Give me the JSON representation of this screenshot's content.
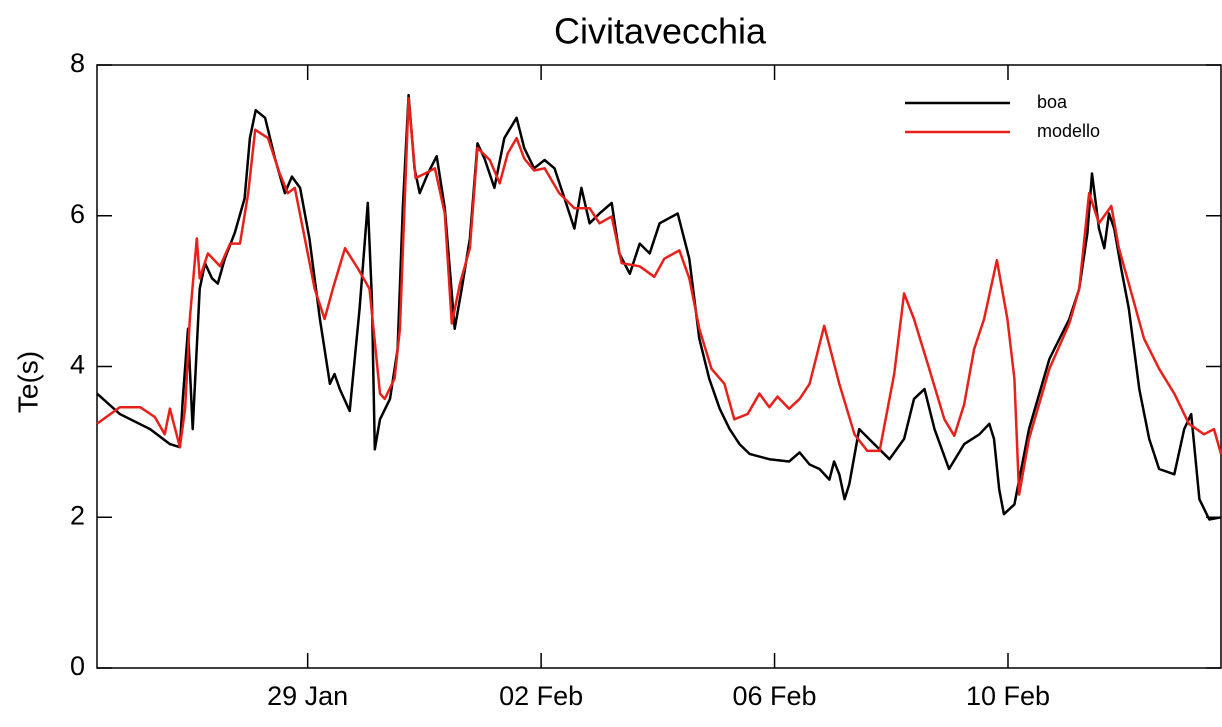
{
  "chart_data": {
    "type": "line",
    "title": "Civitavecchia",
    "y_label": "Te(s)",
    "xlim": [
      25.39,
      44.65
    ],
    "xticks": [
      {
        "value": 29,
        "label": "29 Jan"
      },
      {
        "value": 33,
        "label": "02 Feb"
      },
      {
        "value": 37,
        "label": "06 Feb"
      },
      {
        "value": 41,
        "label": "10 Feb"
      }
    ],
    "ylim": [
      0,
      8
    ],
    "yticks": [
      0,
      2,
      4,
      6,
      8
    ],
    "legend": "top-right",
    "series": [
      {
        "name": "boa",
        "color": "#000000",
        "x": [
          25.39,
          25.78,
          26.3,
          26.64,
          26.81,
          26.86,
          26.95,
          27.03,
          27.15,
          27.24,
          27.36,
          27.46,
          27.58,
          27.75,
          27.92,
          28.01,
          28.11,
          28.27,
          28.44,
          28.61,
          28.73,
          28.87,
          29.03,
          29.21,
          29.38,
          29.46,
          29.55,
          29.72,
          29.89,
          30.03,
          30.1,
          30.15,
          30.24,
          30.41,
          30.54,
          30.63,
          30.73,
          30.83,
          30.92,
          31.06,
          31.21,
          31.35,
          31.52,
          31.64,
          31.78,
          31.91,
          32.03,
          32.2,
          32.37,
          32.58,
          32.71,
          32.88,
          33.06,
          33.23,
          33.4,
          33.57,
          33.69,
          33.83,
          34.0,
          34.21,
          34.34,
          34.52,
          34.69,
          34.86,
          35.03,
          35.34,
          35.54,
          35.71,
          35.88,
          36.06,
          36.23,
          36.4,
          36.57,
          36.91,
          37.25,
          37.43,
          37.6,
          37.77,
          37.94,
          38.02,
          38.11,
          38.2,
          38.28,
          38.45,
          38.71,
          38.97,
          39.22,
          39.39,
          39.57,
          39.74,
          39.99,
          40.25,
          40.51,
          40.68,
          40.76,
          40.85,
          40.93,
          41.11,
          41.36,
          41.71,
          42.05,
          42.22,
          42.36,
          42.44,
          42.56,
          42.65,
          42.73,
          42.82,
          42.94,
          43.07,
          43.25,
          43.42,
          43.59,
          43.85,
          44.02,
          44.14,
          44.28,
          44.45,
          44.65
        ],
        "values": [
          3.64,
          3.37,
          3.17,
          2.97,
          2.93,
          3.57,
          4.5,
          3.17,
          5.03,
          5.37,
          5.17,
          5.1,
          5.43,
          5.77,
          6.23,
          7.03,
          7.4,
          7.3,
          6.76,
          6.3,
          6.52,
          6.37,
          5.7,
          4.63,
          3.77,
          3.9,
          3.7,
          3.41,
          4.77,
          6.17,
          4.9,
          2.9,
          3.3,
          3.57,
          4.23,
          6.1,
          7.6,
          6.63,
          6.3,
          6.56,
          6.79,
          6.1,
          4.5,
          5.03,
          5.7,
          6.96,
          6.76,
          6.37,
          7.03,
          7.3,
          6.9,
          6.63,
          6.74,
          6.63,
          6.23,
          5.83,
          6.37,
          5.9,
          6.03,
          6.17,
          5.5,
          5.23,
          5.63,
          5.5,
          5.9,
          6.03,
          5.43,
          4.37,
          3.84,
          3.44,
          3.17,
          2.97,
          2.84,
          2.77,
          2.74,
          2.86,
          2.7,
          2.64,
          2.5,
          2.74,
          2.57,
          2.24,
          2.44,
          3.17,
          2.97,
          2.77,
          3.04,
          3.57,
          3.7,
          3.17,
          2.64,
          2.97,
          3.1,
          3.24,
          3.04,
          2.37,
          2.04,
          2.17,
          3.17,
          4.1,
          4.63,
          5.03,
          5.77,
          6.56,
          5.83,
          5.57,
          6.03,
          5.83,
          5.3,
          4.77,
          3.7,
          3.04,
          2.64,
          2.57,
          3.17,
          3.37,
          2.24,
          1.97,
          2.0
        ]
      },
      {
        "name": "modello",
        "color": "#e8201a",
        "x": [
          25.39,
          25.78,
          26.13,
          26.38,
          26.55,
          26.64,
          26.73,
          26.81,
          26.9,
          26.98,
          27.1,
          27.15,
          27.29,
          27.5,
          27.67,
          27.84,
          27.98,
          28.1,
          28.32,
          28.52,
          28.66,
          28.78,
          28.95,
          29.12,
          29.29,
          29.43,
          29.64,
          29.86,
          30.06,
          30.24,
          30.32,
          30.49,
          30.58,
          30.73,
          30.85,
          31.01,
          31.18,
          31.35,
          31.47,
          31.61,
          31.78,
          31.91,
          32.12,
          32.29,
          32.43,
          32.58,
          32.71,
          32.88,
          33.06,
          33.31,
          33.57,
          33.83,
          34.0,
          34.21,
          34.38,
          34.69,
          34.94,
          35.11,
          35.37,
          35.54,
          35.71,
          35.92,
          36.14,
          36.31,
          36.54,
          36.74,
          36.91,
          37.05,
          37.25,
          37.43,
          37.6,
          37.85,
          38.11,
          38.37,
          38.59,
          38.8,
          39.05,
          39.22,
          39.39,
          39.65,
          39.91,
          40.08,
          40.25,
          40.42,
          40.59,
          40.81,
          40.99,
          41.11,
          41.19,
          41.36,
          41.71,
          42.05,
          42.22,
          42.39,
          42.56,
          42.77,
          42.9,
          43.07,
          43.33,
          43.59,
          43.85,
          44.1,
          44.36,
          44.53,
          44.65
        ],
        "values": [
          3.24,
          3.46,
          3.46,
          3.33,
          3.1,
          3.44,
          3.17,
          2.93,
          3.44,
          4.63,
          5.7,
          5.17,
          5.5,
          5.33,
          5.63,
          5.63,
          6.3,
          7.14,
          7.03,
          6.56,
          6.3,
          6.37,
          5.7,
          5.03,
          4.63,
          5.03,
          5.57,
          5.3,
          5.03,
          3.64,
          3.57,
          3.84,
          4.5,
          7.56,
          6.5,
          6.56,
          6.63,
          6.03,
          4.57,
          5.1,
          5.57,
          6.9,
          6.74,
          6.43,
          6.83,
          7.03,
          6.76,
          6.6,
          6.63,
          6.3,
          6.1,
          6.1,
          5.9,
          5.99,
          5.37,
          5.33,
          5.19,
          5.43,
          5.54,
          5.17,
          4.5,
          3.97,
          3.77,
          3.3,
          3.37,
          3.64,
          3.46,
          3.6,
          3.44,
          3.57,
          3.77,
          4.54,
          3.77,
          3.1,
          2.88,
          2.88,
          3.9,
          4.97,
          4.63,
          3.97,
          3.3,
          3.08,
          3.5,
          4.23,
          4.63,
          5.41,
          4.63,
          3.84,
          2.3,
          3.04,
          3.97,
          4.57,
          5.03,
          6.3,
          5.9,
          6.13,
          5.57,
          5.1,
          4.37,
          3.97,
          3.64,
          3.24,
          3.1,
          3.17,
          2.84
        ]
      }
    ]
  }
}
